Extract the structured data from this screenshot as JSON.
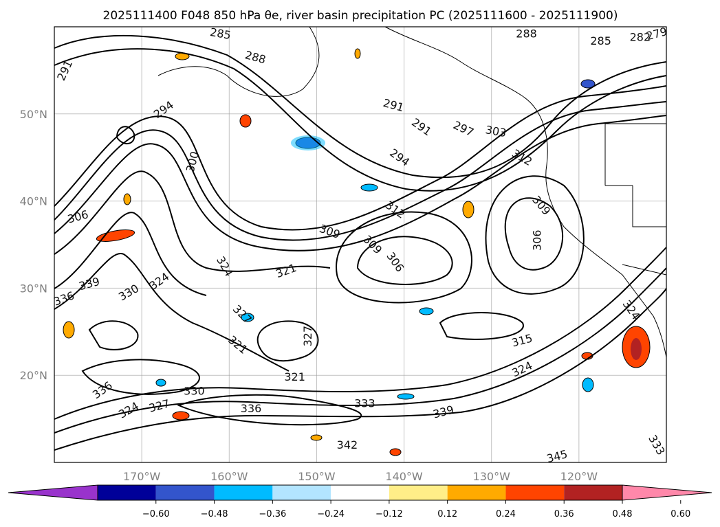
{
  "title": "2025111400 F048 850 hPa θe, river basin precipitation PC (2025111600 - 2025111900)",
  "map": {
    "lon_range": [
      -180,
      -110
    ],
    "lat_range": [
      10,
      60
    ],
    "lat_labels": [
      "20°N",
      "30°N",
      "40°N",
      "50°N"
    ],
    "lat_values": [
      20,
      30,
      40,
      50
    ],
    "lon_labels": [
      "170°W",
      "160°W",
      "150°W",
      "140°W",
      "130°W",
      "120°W"
    ],
    "lon_values": [
      -170,
      -160,
      -150,
      -140,
      -130,
      -120
    ],
    "contour_labels": [
      {
        "text": "291",
        "lon": -178.8,
        "lat": 55.0,
        "rot": 65
      },
      {
        "text": "285",
        "lon": -161.0,
        "lat": 59.3,
        "rot": -10
      },
      {
        "text": "288",
        "lon": -157.0,
        "lat": 56.5,
        "rot": -15
      },
      {
        "text": "294",
        "lon": -167.5,
        "lat": 50.5,
        "rot": 35
      },
      {
        "text": "300",
        "lon": -164.2,
        "lat": 44.5,
        "rot": 75
      },
      {
        "text": "291",
        "lon": -141.2,
        "lat": 51.0,
        "rot": -15
      },
      {
        "text": "291",
        "lon": -138.0,
        "lat": 48.5,
        "rot": -35
      },
      {
        "text": "294",
        "lon": -140.5,
        "lat": 45.0,
        "rot": -35
      },
      {
        "text": "297",
        "lon": -133.2,
        "lat": 48.3,
        "rot": -25
      },
      {
        "text": "303",
        "lon": -129.5,
        "lat": 48.0,
        "rot": -10
      },
      {
        "text": "312",
        "lon": -126.5,
        "lat": 45.0,
        "rot": -30
      },
      {
        "text": "309",
        "lon": -124.3,
        "lat": 39.5,
        "rot": -50
      },
      {
        "text": "306",
        "lon": -124.8,
        "lat": 35.5,
        "rot": 90
      },
      {
        "text": "288",
        "lon": -126.0,
        "lat": 59.3,
        "rot": 0
      },
      {
        "text": "285",
        "lon": -117.5,
        "lat": 58.4,
        "rot": 0
      },
      {
        "text": "282",
        "lon": -113.0,
        "lat": 58.8,
        "rot": 0
      },
      {
        "text": "279",
        "lon": -110.5,
        "lat": 59.2,
        "rot": 15
      },
      {
        "text": "306",
        "lon": -177.3,
        "lat": 38.2,
        "rot": 15
      },
      {
        "text": "309",
        "lon": -148.5,
        "lat": 36.5,
        "rot": -20
      },
      {
        "text": "312",
        "lon": -141.0,
        "lat": 39.0,
        "rot": -35
      },
      {
        "text": "309",
        "lon": -143.6,
        "lat": 35.0,
        "rot": -45
      },
      {
        "text": "306",
        "lon": -141.0,
        "lat": 33.0,
        "rot": -55
      },
      {
        "text": "324",
        "lon": -160.5,
        "lat": 32.5,
        "rot": -60
      },
      {
        "text": "321",
        "lon": -153.5,
        "lat": 32.0,
        "rot": 20
      },
      {
        "text": "339",
        "lon": -176.0,
        "lat": 30.5,
        "rot": 15
      },
      {
        "text": "336",
        "lon": -180.0,
        "lat": 28.8,
        "rot": 20
      },
      {
        "text": "330",
        "lon": -171.5,
        "lat": 29.5,
        "rot": 30
      },
      {
        "text": "324",
        "lon": -168.0,
        "lat": 30.8,
        "rot": 35
      },
      {
        "text": "327",
        "lon": -158.5,
        "lat": 27.0,
        "rot": -45
      },
      {
        "text": "327",
        "lon": -151.0,
        "lat": 24.5,
        "rot": 90
      },
      {
        "text": "321",
        "lon": -159.0,
        "lat": 23.5,
        "rot": -40
      },
      {
        "text": "321",
        "lon": -152.5,
        "lat": 19.8,
        "rot": 0
      },
      {
        "text": "315",
        "lon": -126.5,
        "lat": 24.0,
        "rot": 15
      },
      {
        "text": "324",
        "lon": -114.0,
        "lat": 27.5,
        "rot": -55
      },
      {
        "text": "330",
        "lon": -164.0,
        "lat": 18.2,
        "rot": 0
      },
      {
        "text": "327",
        "lon": -168.0,
        "lat": 16.5,
        "rot": 15
      },
      {
        "text": "324",
        "lon": -171.5,
        "lat": 16.0,
        "rot": 30
      },
      {
        "text": "336",
        "lon": -174.5,
        "lat": 18.3,
        "rot": 35
      },
      {
        "text": "333",
        "lon": -144.5,
        "lat": 16.8,
        "rot": 0
      },
      {
        "text": "336",
        "lon": -157.5,
        "lat": 16.2,
        "rot": 0
      },
      {
        "text": "339",
        "lon": -135.5,
        "lat": 15.8,
        "rot": 15
      },
      {
        "text": "342",
        "lon": -146.5,
        "lat": 12.0,
        "rot": 0
      },
      {
        "text": "345",
        "lon": -122.5,
        "lat": 10.7,
        "rot": 15
      },
      {
        "text": "324",
        "lon": -126.5,
        "lat": 20.7,
        "rot": 25
      },
      {
        "text": "333",
        "lon": -110.8,
        "lat": 12.0,
        "rot": -60
      }
    ]
  },
  "colorbar": {
    "levels": [
      "-0.60",
      "-0.48",
      "-0.36",
      "-0.24",
      "-0.12",
      "0.12",
      "0.24",
      "0.36",
      "0.48",
      "0.60"
    ],
    "colors": [
      "#9933cc",
      "#000099",
      "#3355cc",
      "#00bbff",
      "#b3e5ff",
      "#ffffff",
      "#ffee88",
      "#ffaa00",
      "#ff4400",
      "#b22222",
      "#ff88aa"
    ]
  }
}
